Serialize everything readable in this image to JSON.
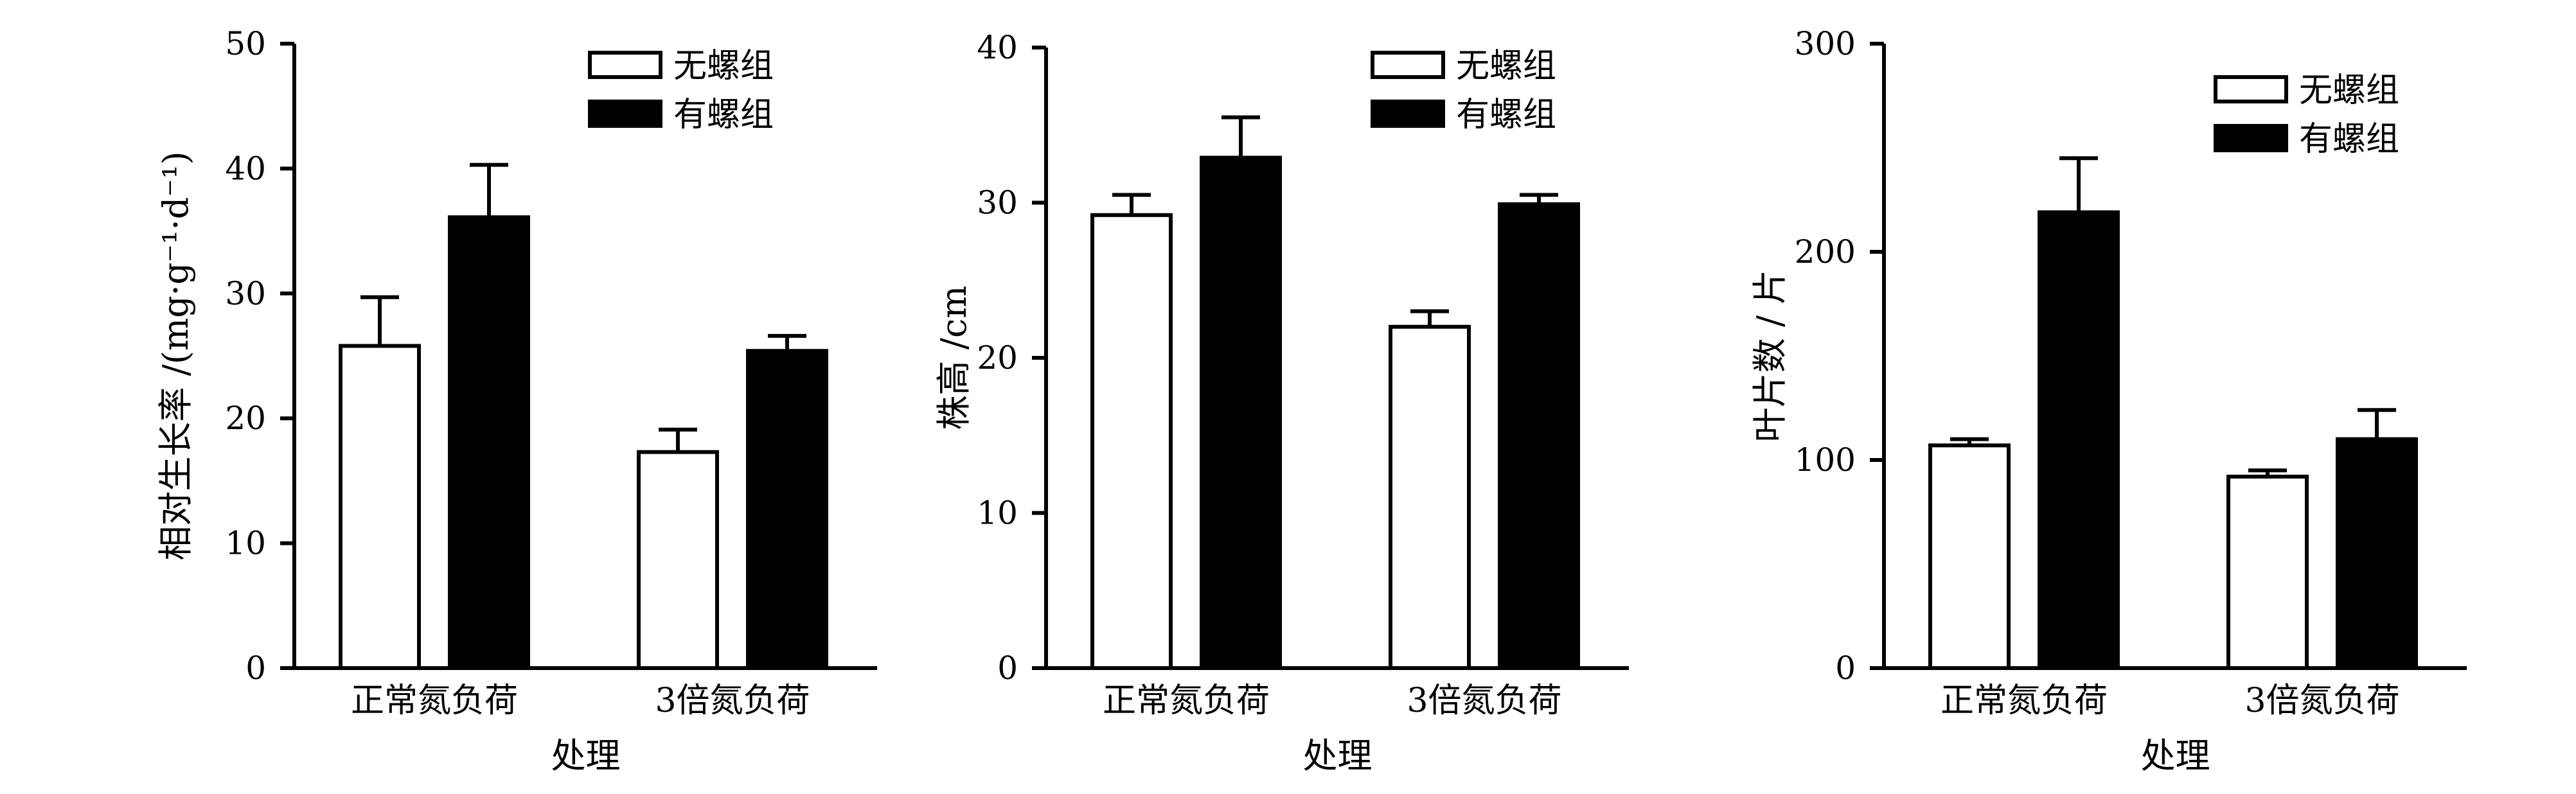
{
  "chart_data": [
    {
      "type": "bar",
      "ylabel": "相对生长率 /(mg·g⁻¹·d⁻¹)",
      "xlabel": "处理",
      "ylim": [
        0,
        50
      ],
      "yticks": [
        0,
        10,
        20,
        30,
        40,
        50
      ],
      "categories": [
        "正常氮负荷",
        "3倍氮负荷"
      ],
      "series": [
        {
          "name": "无螺组",
          "color": "#ffffff",
          "values": [
            25.8,
            17.3
          ],
          "errors": [
            3.9,
            1.8
          ]
        },
        {
          "name": "有螺组",
          "color": "#000000",
          "values": [
            36.1,
            25.4
          ],
          "errors": [
            4.2,
            1.2
          ]
        }
      ],
      "legend": "top-right",
      "grid": false
    },
    {
      "type": "bar",
      "ylabel": "株高 /cm",
      "xlabel": "处理",
      "ylim": [
        0,
        40
      ],
      "yticks": [
        0,
        10,
        20,
        30,
        40
      ],
      "categories": [
        "正常氮负荷",
        "3倍氮负荷"
      ],
      "series": [
        {
          "name": "无螺组",
          "color": "#ffffff",
          "values": [
            29.2,
            22.0
          ],
          "errors": [
            1.3,
            1.0
          ]
        },
        {
          "name": "有螺组",
          "color": "#000000",
          "values": [
            32.9,
            29.9
          ],
          "errors": [
            2.6,
            0.6
          ]
        }
      ],
      "legend": "top-right",
      "grid": false
    },
    {
      "type": "bar",
      "ylabel": "叶片数 / 片",
      "xlabel": "处理",
      "ylim": [
        0,
        300
      ],
      "yticks": [
        0,
        100,
        200,
        300
      ],
      "categories": [
        "正常氮负荷",
        "3倍氮负荷"
      ],
      "series": [
        {
          "name": "无螺组",
          "color": "#ffffff",
          "values": [
            107,
            92
          ],
          "errors": [
            3,
            3
          ]
        },
        {
          "name": "有螺组",
          "color": "#000000",
          "values": [
            219,
            110
          ],
          "errors": [
            26,
            14
          ]
        }
      ],
      "legend": "top-right",
      "grid": false
    }
  ]
}
